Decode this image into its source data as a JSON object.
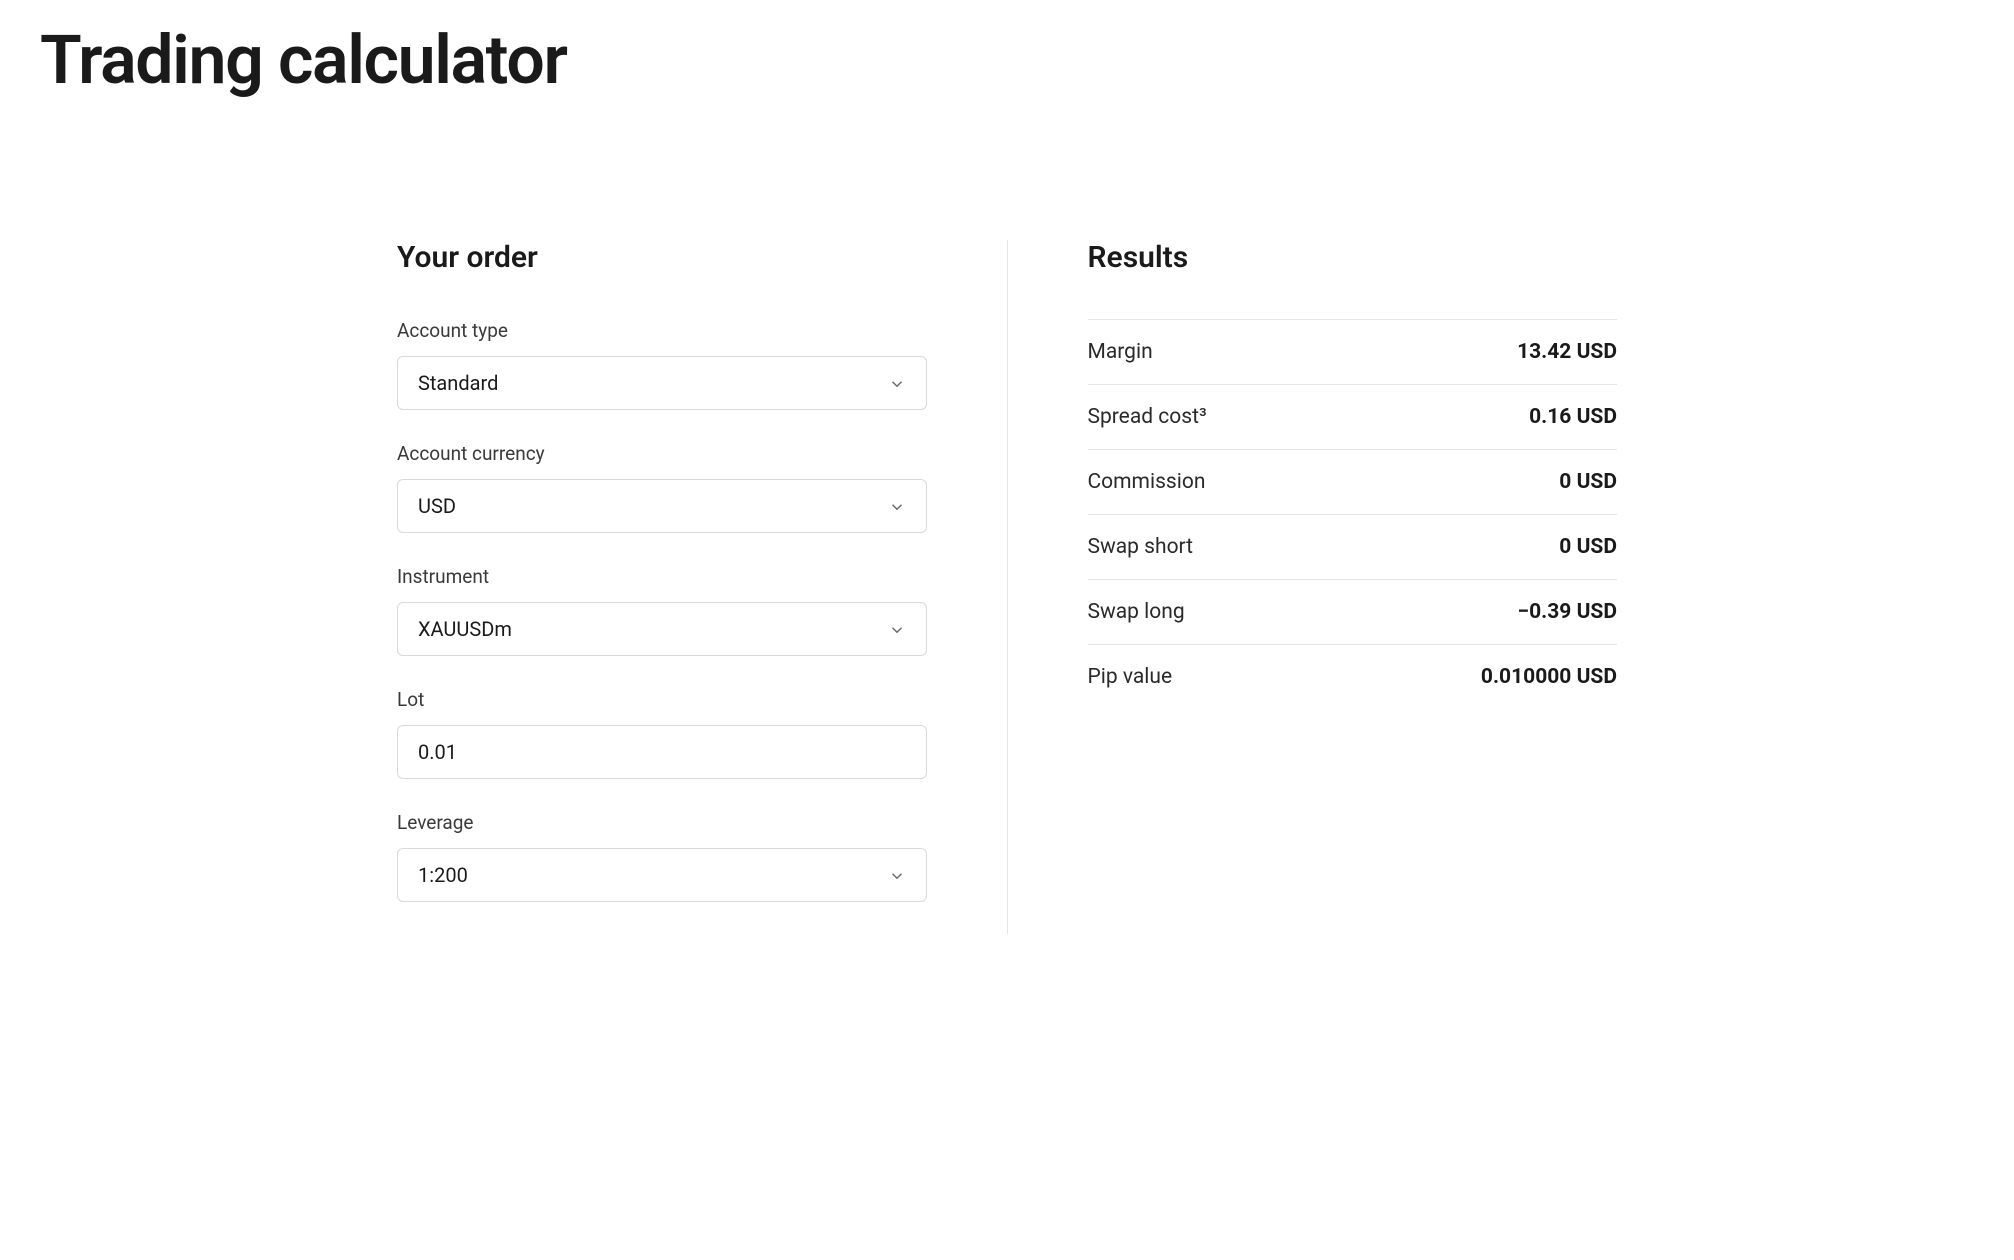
{
  "page": {
    "title": "Trading calculator"
  },
  "order": {
    "panel_title": "Your order",
    "fields": {
      "account_type": {
        "label": "Account type",
        "value": "Standard"
      },
      "account_currency": {
        "label": "Account currency",
        "value": "USD"
      },
      "instrument": {
        "label": "Instrument",
        "value": "XAUUSDm"
      },
      "lot": {
        "label": "Lot",
        "value": "0.01"
      },
      "leverage": {
        "label": "Leverage",
        "value": "1:200"
      }
    }
  },
  "results": {
    "panel_title": "Results",
    "rows": [
      {
        "label": "Margin",
        "value": "13.42 USD"
      },
      {
        "label": "Spread cost³",
        "value": "0.16 USD"
      },
      {
        "label": "Commission",
        "value": "0 USD"
      },
      {
        "label": "Swap short",
        "value": "0 USD"
      },
      {
        "label": "Swap long",
        "value": "−0.39 USD"
      },
      {
        "label": "Pip value",
        "value": "0.010000 USD"
      }
    ]
  }
}
